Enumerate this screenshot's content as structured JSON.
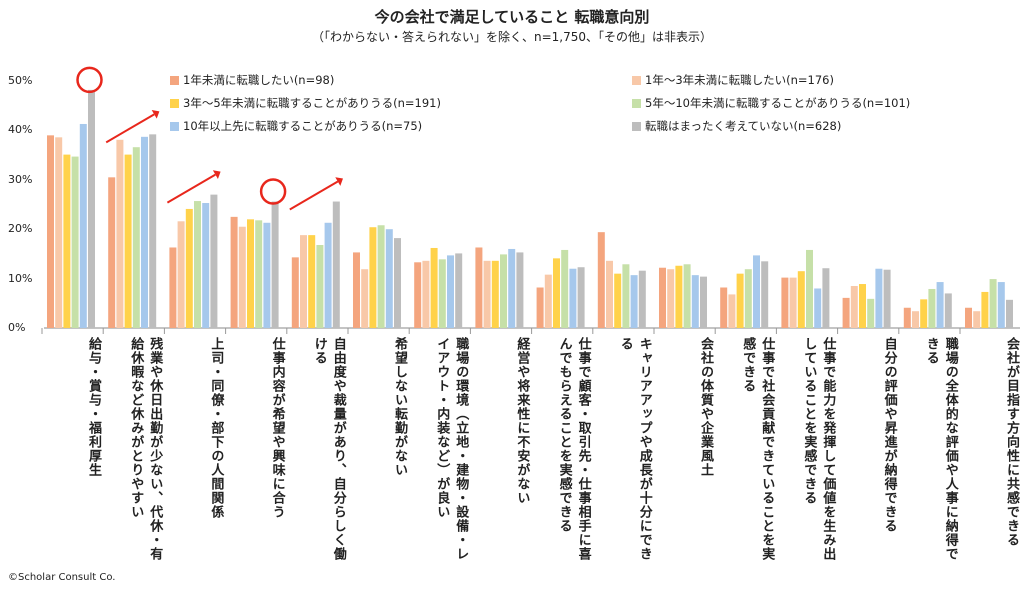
{
  "header": {
    "title": "今の会社で満足していること 転職意向別",
    "subtitle": "（「わからない・答えられない」を除く、n=1,750、「その他」は非表示）"
  },
  "footer": {
    "copyright": "©Scholar Consult Co."
  },
  "chart_data": {
    "type": "bar",
    "title": "今の会社で満足していること 転職意向別",
    "subtitle": "（「わからない・答えられない」を除く、n=1,750、「その他」は非表示）",
    "ylim": [
      0,
      50
    ],
    "yticks": [
      "0%",
      "10%",
      "20%",
      "30%",
      "40%",
      "50%"
    ],
    "grid": false,
    "legend_position": "top",
    "categories": [
      "給与・賞与・福利厚生",
      "残業や休日出勤が少ない、代休・有給休暇など休みがとりやすい",
      "上司・同僚・部下の人間関係",
      "仕事内容が希望や興味に合う",
      "自由度や裁量があり、自分らしく働ける",
      "希望しない転勤がない",
      "職場の環境（立地・建物・設備・レイアウト・内装など）が良い",
      "経営や将来性に不安がない",
      "仕事で顧客・取引先・仕事相手に喜んでもらえることを実感できる",
      "キャリアアップや成長が十分にできる",
      "会社の体質や企業風土",
      "仕事で社会貢献できていることを実感できる",
      "仕事で能力を発揮して価値を生み出していることを実感できる",
      "自分の評価や昇進が納得できる",
      "職場の全体的な評価や人事に納得できる",
      "会社が目指す方向性に共感できる"
    ],
    "series": [
      {
        "name": "1年未満に転職したい(n=98)",
        "color": "#f4a57e",
        "values": [
          39,
          30.5,
          16.3,
          22.5,
          14.3,
          15.3,
          13.3,
          16.3,
          8.2,
          19.4,
          12.2,
          8.2,
          10.2,
          6.1,
          4.1,
          4.1
        ]
      },
      {
        "name": "1年～3年未満に転職したい(n=176)",
        "color": "#f8c8a8",
        "values": [
          38.6,
          38.1,
          21.6,
          20.5,
          18.8,
          11.9,
          13.6,
          13.6,
          10.8,
          13.6,
          11.9,
          6.8,
          10.2,
          8.5,
          3.4,
          3.4
        ]
      },
      {
        "name": "3年～5年未満に転職することがありうる(n=191)",
        "color": "#ffd24a",
        "values": [
          35.1,
          35.1,
          24.1,
          22,
          18.8,
          20.4,
          16.2,
          13.6,
          14.1,
          11,
          12.6,
          11,
          11.5,
          8.9,
          5.8,
          7.3
        ]
      },
      {
        "name": "5年～10年未満に転職することがありうる(n=101)",
        "color": "#c6e0a8",
        "values": [
          34.7,
          36.6,
          25.7,
          21.8,
          16.8,
          20.8,
          13.9,
          14.9,
          15.8,
          12.9,
          12.9,
          11.9,
          15.8,
          5.9,
          7.9,
          9.9
        ]
      },
      {
        "name": "10年以上先に転職することがありうる(n=75)",
        "color": "#a6c8ec",
        "values": [
          41.3,
          38.7,
          25.3,
          21.3,
          21.3,
          20,
          14.7,
          16,
          12,
          10.7,
          10.7,
          14.7,
          8,
          12,
          9.3,
          9.3
        ]
      },
      {
        "name": "転職はまったく考えていない(n=628)",
        "color": "#bdbdbd",
        "values": [
          48.2,
          39.2,
          27,
          25.6,
          25.6,
          18.2,
          15.1,
          15.3,
          12.3,
          11.6,
          10.4,
          13.5,
          12.1,
          11.8,
          7,
          5.7
        ]
      }
    ],
    "annotations": [
      "red circles on 給与・賞与・福利厚生 and 仕事内容が希望や興味に合う (転職はまったく考えていない)",
      "red rising arrows over 残業や休日出勤が少ない、上司・同僚・部下の人間関係, 自由度や裁量があり"
    ],
    "accent_color": "#e8271c"
  }
}
